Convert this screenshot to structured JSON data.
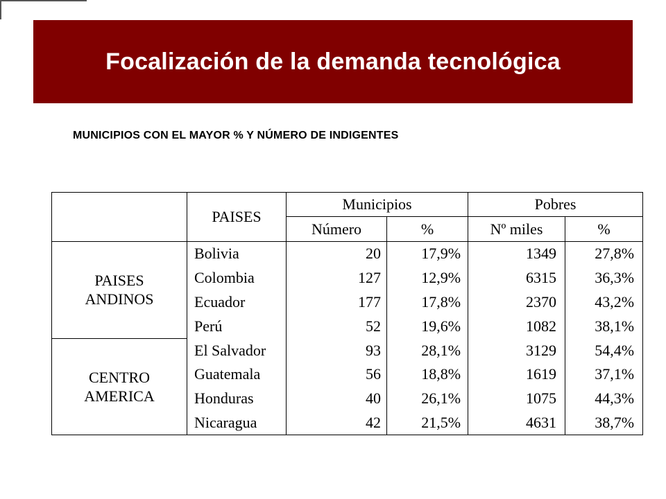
{
  "slide": {
    "title": "Focalización de la demanda tecnológica",
    "subtitle": "MUNICIPIOS CON EL MAYOR % Y NÚMERO DE INDIGENTES"
  },
  "table": {
    "header": {
      "paises": "PAISES",
      "municipios": "Municipios",
      "pobres": "Pobres",
      "numero": "Número",
      "pct": "%",
      "n_miles": "Nº miles",
      "pct2": "%"
    },
    "regions": [
      {
        "name_line1": "PAISES",
        "name_line2": "ANDINOS",
        "rows": [
          {
            "pais": "Bolivia",
            "numero": "20",
            "pct": "17,9%",
            "miles": "1349",
            "pct2": "27,8%"
          },
          {
            "pais": "Colombia",
            "numero": "127",
            "pct": "12,9%",
            "miles": "6315",
            "pct2": "36,3%"
          },
          {
            "pais": "Ecuador",
            "numero": "177",
            "pct": "17,8%",
            "miles": "2370",
            "pct2": "43,2%"
          },
          {
            "pais": "Perú",
            "numero": "52",
            "pct": "19,6%",
            "miles": "1082",
            "pct2": "38,1%"
          }
        ]
      },
      {
        "name_line1": "CENTRO",
        "name_line2": "AMERICA",
        "rows": [
          {
            "pais": "El Salvador",
            "numero": "93",
            "pct": "28,1%",
            "miles": "3129",
            "pct2": "54,4%"
          },
          {
            "pais": "Guatemala",
            "numero": "56",
            "pct": "18,8%",
            "miles": "1619",
            "pct2": "37,1%"
          },
          {
            "pais": "Honduras",
            "numero": "40",
            "pct": "26,1%",
            "miles": "1075",
            "pct2": "44,3%"
          },
          {
            "pais": "Nicaragua",
            "numero": "42",
            "pct": "21,5%",
            "miles": "4631",
            "pct2": "38,7%"
          }
        ]
      }
    ]
  }
}
